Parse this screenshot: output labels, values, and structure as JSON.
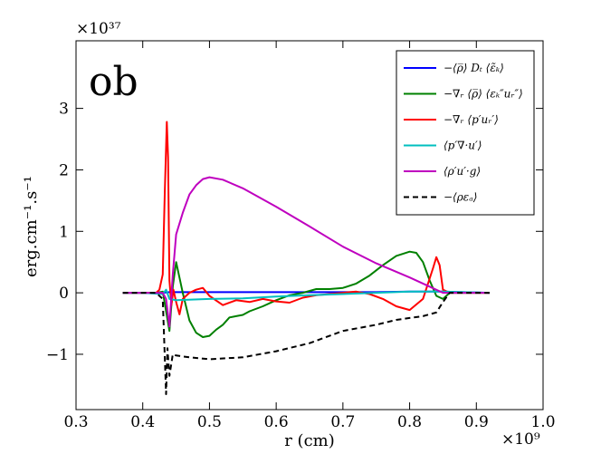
{
  "chart_data": {
    "type": "line",
    "panel_label": "ob",
    "xlabel": "r (cm)",
    "ylabel": "erg.cm⁻¹.s⁻¹",
    "x_multiplier": "×10⁹",
    "y_multiplier": "×10³⁷",
    "xlim": [
      0.3,
      1.0
    ],
    "ylim": [
      -1.9,
      4.1
    ],
    "x_ticks": [
      "0.3",
      "0.4",
      "0.5",
      "0.6",
      "0.7",
      "0.8",
      "0.9",
      "1.0"
    ],
    "y_ticks": [
      "−1",
      "0",
      "1",
      "2",
      "3"
    ],
    "x_tick_values": [
      0.3,
      0.4,
      0.5,
      0.6,
      0.7,
      0.8,
      0.9,
      1.0
    ],
    "y_tick_values": [
      -1,
      0,
      1,
      2,
      3
    ],
    "legend_position": "top-right",
    "series": [
      {
        "name": "−⟨ρ̅⟩ Dₜ ⟨ε̃ₖ⟩",
        "color": "#0000ff",
        "dash": "solid",
        "x": [
          0.37,
          0.4,
          0.43,
          0.44,
          0.46,
          0.5,
          0.55,
          0.6,
          0.65,
          0.7,
          0.75,
          0.8,
          0.85,
          0.88,
          0.92
        ],
        "y": [
          0.0,
          0.0,
          0.0,
          0.01,
          0.01,
          0.01,
          0.01,
          0.01,
          0.01,
          0.01,
          0.01,
          0.02,
          0.02,
          0.01,
          0.0
        ]
      },
      {
        "name": "−∇ᵣ ⟨ρ̅⟩ ⟨εₖ″uᵣ″⟩",
        "color": "#008000",
        "dash": "solid",
        "x": [
          0.37,
          0.4,
          0.42,
          0.43,
          0.435,
          0.44,
          0.445,
          0.45,
          0.46,
          0.47,
          0.48,
          0.49,
          0.5,
          0.51,
          0.52,
          0.53,
          0.54,
          0.55,
          0.56,
          0.58,
          0.6,
          0.62,
          0.64,
          0.66,
          0.68,
          0.7,
          0.72,
          0.74,
          0.76,
          0.78,
          0.8,
          0.81,
          0.82,
          0.83,
          0.84,
          0.85,
          0.86,
          0.88,
          0.92
        ],
        "y": [
          0.0,
          0.0,
          0.0,
          0.02,
          -0.3,
          -0.62,
          0.1,
          0.5,
          0.0,
          -0.45,
          -0.65,
          -0.72,
          -0.7,
          -0.6,
          -0.52,
          -0.4,
          -0.38,
          -0.36,
          -0.3,
          -0.22,
          -0.12,
          -0.04,
          0.0,
          0.06,
          0.06,
          0.08,
          0.15,
          0.28,
          0.45,
          0.6,
          0.67,
          0.65,
          0.5,
          0.2,
          -0.05,
          -0.1,
          0.0,
          0.0,
          0.0
        ]
      },
      {
        "name": "−∇ᵣ ⟨p′uᵣ′⟩",
        "color": "#ff0000",
        "dash": "solid",
        "x": [
          0.37,
          0.4,
          0.42,
          0.425,
          0.43,
          0.433,
          0.436,
          0.438,
          0.44,
          0.443,
          0.446,
          0.45,
          0.455,
          0.46,
          0.47,
          0.48,
          0.49,
          0.5,
          0.52,
          0.54,
          0.56,
          0.58,
          0.6,
          0.62,
          0.64,
          0.66,
          0.68,
          0.7,
          0.72,
          0.74,
          0.76,
          0.78,
          0.8,
          0.82,
          0.835,
          0.84,
          0.845,
          0.85,
          0.86,
          0.88,
          0.92
        ],
        "y": [
          0.0,
          0.0,
          0.0,
          0.05,
          0.3,
          1.6,
          2.78,
          2.2,
          0.2,
          -0.2,
          0.05,
          -0.15,
          -0.35,
          -0.1,
          0.0,
          0.05,
          0.08,
          -0.05,
          -0.2,
          -0.12,
          -0.15,
          -0.1,
          -0.14,
          -0.16,
          -0.08,
          -0.04,
          -0.02,
          0.0,
          0.02,
          -0.02,
          -0.1,
          -0.22,
          -0.28,
          -0.1,
          0.4,
          0.58,
          0.45,
          0.05,
          0.0,
          0.0,
          0.0
        ]
      },
      {
        "name": "⟨p′∇·u′⟩",
        "color": "#00bfbf",
        "dash": "solid",
        "x": [
          0.37,
          0.4,
          0.43,
          0.435,
          0.44,
          0.45,
          0.5,
          0.55,
          0.6,
          0.65,
          0.7,
          0.75,
          0.8,
          0.85,
          0.88,
          0.92
        ],
        "y": [
          0.0,
          0.0,
          -0.02,
          0.05,
          -0.1,
          -0.12,
          -0.1,
          -0.09,
          -0.06,
          -0.04,
          -0.02,
          0.0,
          0.02,
          0.02,
          0.01,
          0.0
        ]
      },
      {
        "name": "⟨ρ′u′·g⟩",
        "color": "#bf00bf",
        "dash": "solid",
        "x": [
          0.37,
          0.4,
          0.43,
          0.435,
          0.44,
          0.445,
          0.45,
          0.46,
          0.47,
          0.48,
          0.49,
          0.5,
          0.52,
          0.55,
          0.6,
          0.65,
          0.7,
          0.75,
          0.8,
          0.83,
          0.85,
          0.86,
          0.88,
          0.92
        ],
        "y": [
          0.0,
          0.0,
          0.0,
          -0.1,
          -0.55,
          0.3,
          0.95,
          1.3,
          1.6,
          1.75,
          1.85,
          1.88,
          1.84,
          1.7,
          1.4,
          1.08,
          0.75,
          0.48,
          0.25,
          0.1,
          0.0,
          0.0,
          0.0,
          0.0
        ]
      },
      {
        "name": "−⟨ρεₐ⟩",
        "color": "#000000",
        "dash": "dashed",
        "x": [
          0.37,
          0.4,
          0.42,
          0.43,
          0.435,
          0.437,
          0.44,
          0.445,
          0.45,
          0.47,
          0.5,
          0.55,
          0.6,
          0.65,
          0.7,
          0.75,
          0.78,
          0.8,
          0.82,
          0.84,
          0.85,
          0.86,
          0.88,
          0.92
        ],
        "y": [
          0.0,
          0.0,
          0.0,
          -0.1,
          -1.65,
          -0.9,
          -1.35,
          -1.0,
          -1.02,
          -1.05,
          -1.08,
          -1.05,
          -0.95,
          -0.82,
          -0.62,
          -0.52,
          -0.44,
          -0.41,
          -0.38,
          -0.32,
          -0.15,
          0.0,
          0.0,
          0.0
        ]
      }
    ]
  }
}
